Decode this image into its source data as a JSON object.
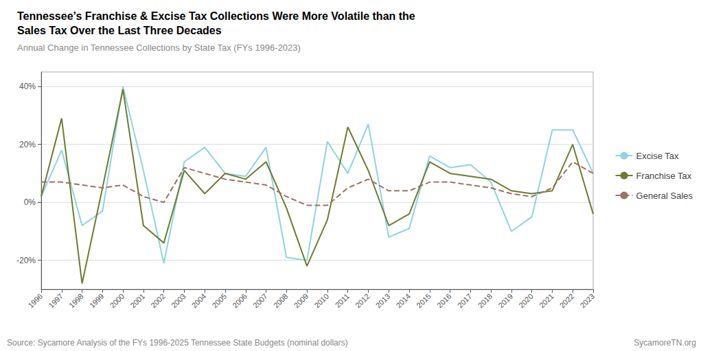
{
  "chart_data": {
    "type": "line",
    "title": "Tennessee’s Franchise & Excise Tax Collections Were More Volatile than the\nSales Tax Over the Last Three Decades",
    "subtitle": "Annual Change in Tennessee Collections by State Tax (FYs 1996-2023)",
    "annotations": [
      "Source: Sycamore Analysis of the FYs 1996-2025 Tennessee State Budgets (nominal dollars)",
      "SycamoreTN.org"
    ],
    "x": [
      1996,
      1997,
      1998,
      1999,
      2000,
      2001,
      2002,
      2003,
      2004,
      2005,
      2006,
      2007,
      2008,
      2009,
      2010,
      2011,
      2012,
      2013,
      2014,
      2015,
      2016,
      2017,
      2018,
      2019,
      2020,
      2021,
      2022,
      2023
    ],
    "xlim": [
      1996,
      2023
    ],
    "xticks": [
      1996,
      1997,
      1998,
      1999,
      2000,
      2001,
      2002,
      2003,
      2004,
      2005,
      2006,
      2007,
      2008,
      2009,
      2010,
      2011,
      2012,
      2013,
      2014,
      2015,
      2016,
      2017,
      2018,
      2019,
      2020,
      2021,
      2022,
      2023
    ],
    "ylim": [
      -0.3,
      0.45
    ],
    "yticks": [
      {
        "value": -0.2,
        "label": "-20%"
      },
      {
        "value": 0.0,
        "label": "0%"
      },
      {
        "value": 0.2,
        "label": "20%"
      },
      {
        "value": 0.4,
        "label": "40%"
      }
    ],
    "grid": true,
    "legend": "right",
    "series": [
      {
        "name": "Excise Tax",
        "color": "#8dd3e3",
        "line_style": "solid",
        "values": [
          0.02,
          0.18,
          -0.08,
          -0.03,
          0.4,
          0.11,
          -0.21,
          0.14,
          0.19,
          0.1,
          0.09,
          0.19,
          -0.19,
          -0.2,
          0.21,
          0.1,
          0.27,
          -0.12,
          -0.09,
          0.16,
          0.12,
          0.13,
          0.07,
          -0.1,
          -0.05,
          0.25,
          0.25,
          0.1
        ]
      },
      {
        "name": "Franchise Tax",
        "color": "#6b7c2e",
        "line_style": "solid",
        "values": [
          0.02,
          0.29,
          -0.28,
          0.05,
          0.39,
          -0.08,
          -0.14,
          0.11,
          0.03,
          0.1,
          0.08,
          0.14,
          -0.02,
          -0.22,
          -0.06,
          0.26,
          0.11,
          -0.08,
          -0.04,
          0.14,
          0.1,
          0.09,
          0.08,
          0.04,
          0.03,
          0.04,
          0.2,
          -0.04
        ]
      },
      {
        "name": "General Sales",
        "color": "#a07060",
        "line_style": "dashed",
        "values": [
          0.07,
          0.07,
          0.06,
          0.05,
          0.06,
          0.02,
          0.0,
          0.12,
          0.1,
          0.08,
          0.07,
          0.06,
          0.02,
          -0.01,
          -0.01,
          0.05,
          0.08,
          0.04,
          0.04,
          0.07,
          0.07,
          0.06,
          0.05,
          0.03,
          0.02,
          0.05,
          0.14,
          0.1
        ]
      }
    ]
  }
}
